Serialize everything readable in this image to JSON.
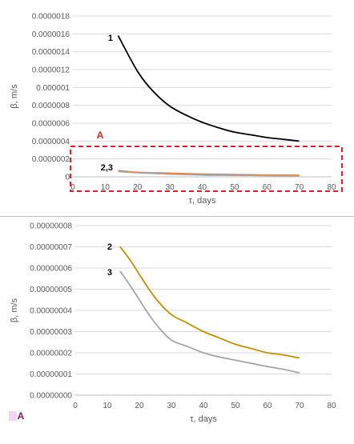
{
  "chart_data": [
    {
      "type": "line",
      "xlabel": "τ, days",
      "ylabel": "β, m/s",
      "xlim": [
        0,
        80
      ],
      "ylim": [
        0,
        1.8e-06
      ],
      "x_ticks": [
        "0",
        "10",
        "20",
        "30",
        "40",
        "50",
        "60",
        "70",
        "80"
      ],
      "y_ticks": [
        "0",
        "0.0000002",
        "0.0000004",
        "0.0000006",
        "0.0000008",
        "0.000001",
        "0.0000012",
        "0.0000014",
        "0.0000016",
        "0.0000018"
      ],
      "grid": "horizontal",
      "annotation": "A",
      "highlight_color": "#e02020",
      "series": [
        {
          "label": "1",
          "color": "#000000",
          "x": [
            14,
            20,
            25,
            30,
            35,
            40,
            45,
            50,
            55,
            60,
            65,
            70
          ],
          "y": [
            1.58e-06,
            1.18e-06,
            9.5e-07,
            7.9e-07,
            6.9e-07,
            6.1e-07,
            5.5e-07,
            5e-07,
            4.7e-07,
            4.4e-07,
            4.2e-07,
            4e-07
          ]
        },
        {
          "label": "2,3",
          "color": "#ed7d31",
          "x": [
            14,
            20,
            30,
            40,
            50,
            60,
            70
          ],
          "y": [
            7e-08,
            5e-08,
            4e-08,
            3e-08,
            2.5e-08,
            2e-08,
            1.8e-08
          ]
        },
        {
          "label": "",
          "color": "#a5a5a5",
          "x": [
            14,
            20,
            30,
            40,
            50,
            60,
            70
          ],
          "y": [
            6e-08,
            4.5e-08,
            3e-08,
            2e-08,
            1.7e-08,
            1.4e-08,
            1.1e-08
          ]
        }
      ]
    },
    {
      "type": "line",
      "xlabel": "τ, days",
      "ylabel": "β, m/s",
      "xlim": [
        0,
        80
      ],
      "ylim": [
        0,
        8e-08
      ],
      "x_ticks": [
        "0",
        "10",
        "20",
        "30",
        "40",
        "50",
        "60",
        "70",
        "80"
      ],
      "y_ticks": [
        "0.00000000",
        "0.00000001",
        "0.00000002",
        "0.00000003",
        "0.00000004",
        "0.00000005",
        "0.00000006",
        "0.00000007",
        "0.00000008"
      ],
      "grid": "horizontal",
      "annotation": "A",
      "series": [
        {
          "label": "2",
          "color": "#bf9000",
          "x": [
            14,
            17,
            20,
            23,
            26,
            30,
            35,
            40,
            45,
            50,
            55,
            60,
            65,
            70
          ],
          "y": [
            7e-08,
            6.4e-08,
            5.7e-08,
            5e-08,
            4.4e-08,
            3.8e-08,
            3.4e-08,
            3e-08,
            2.7e-08,
            2.4e-08,
            2.2e-08,
            2e-08,
            1.9e-08,
            1.75e-08
          ]
        },
        {
          "label": "3",
          "color": "#a5a5a5",
          "x": [
            14,
            17,
            20,
            23,
            26,
            30,
            35,
            40,
            45,
            50,
            55,
            60,
            65,
            70
          ],
          "y": [
            5.85e-08,
            5.2e-08,
            4.5e-08,
            3.8e-08,
            3.2e-08,
            2.6e-08,
            2.3e-08,
            2e-08,
            1.8e-08,
            1.65e-08,
            1.5e-08,
            1.35e-08,
            1.22e-08,
            1.05e-08
          ]
        }
      ]
    }
  ]
}
